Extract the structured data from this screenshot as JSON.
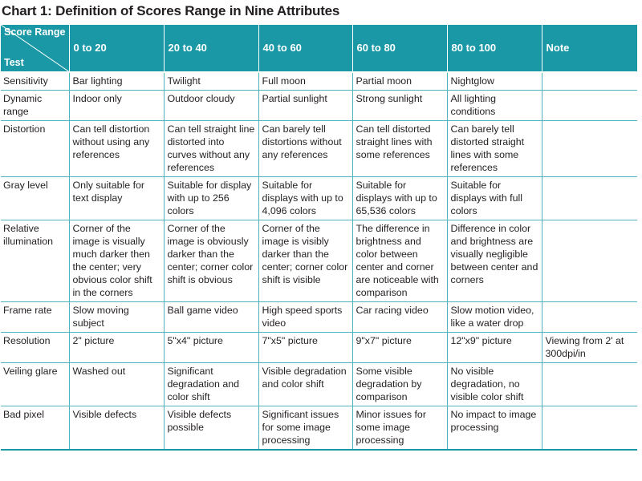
{
  "title": "Chart 1: Definition of Scores Range in Nine Attributes",
  "header": {
    "corner_top": "Score Range",
    "corner_bottom": "Test",
    "columns": [
      "0 to 20",
      "20 to 40",
      "40 to 60",
      "60 to 80",
      "80 to 100",
      "Note"
    ]
  },
  "rows": [
    {
      "test": "Sensitivity",
      "cells": [
        "Bar lighting",
        "Twilight",
        "Full moon",
        "Partial moon",
        "Nightglow",
        ""
      ]
    },
    {
      "test": "Dynamic range",
      "cells": [
        "Indoor only",
        "Outdoor cloudy",
        "Partial sunlight",
        "Strong sunlight",
        "All lighting conditions",
        ""
      ]
    },
    {
      "test": "Distortion",
      "cells": [
        "Can tell distortion without using any references",
        "Can tell straight line distorted into curves without any references",
        "Can barely tell distortions without any references",
        "Can tell distorted straight lines with some references",
        "Can barely tell distorted straight lines with some references",
        ""
      ]
    },
    {
      "test": "Gray level",
      "cells": [
        "Only suitable for text display",
        "Suitable for display with up to 256 colors",
        "Suitable for displays with up to 4,096 colors",
        "Suitable for displays with up to 65,536 colors",
        "Suitable for displays with full colors",
        ""
      ]
    },
    {
      "test": "Relative illumination",
      "cells": [
        "Corner of the image is visually much darker then the center; very obvious color shift in the corners",
        "Corner of the image is obviously darker than the center; corner color shift is obvious",
        "Corner of the image is visibly darker than the center; corner color shift is visible",
        "The difference in brightness and color between center and corner are noticeable with comparison",
        "Difference in color and brightness are visually negligible between center and corners",
        ""
      ]
    },
    {
      "test": "Frame rate",
      "cells": [
        "Slow moving subject",
        "Ball game video",
        "High speed sports video",
        "Car racing video",
        "Slow motion video, like a water drop",
        ""
      ]
    },
    {
      "test": "Resolution",
      "cells": [
        "2\" picture",
        "5\"x4\" picture",
        "7\"x5\" picture",
        "9\"x7\" picture",
        "12\"x9\" picture",
        "Viewing from 2' at 300dpi/in"
      ]
    },
    {
      "test": "Veiling glare",
      "cells": [
        "Washed out",
        "Significant degradation and color shift",
        "Visible degradation and color shift",
        "Some visible degradation by comparison",
        "No visible degradation, no visible color shift",
        ""
      ]
    },
    {
      "test": "Bad pixel",
      "cells": [
        "Visible defects",
        "Visible defects possible",
        "Significant issues for some image processing",
        "Minor issues for some image processing",
        "No impact to image processing",
        ""
      ]
    }
  ],
  "colors": {
    "header_bg": "#1a98a5",
    "grid": "#4db3bd"
  }
}
